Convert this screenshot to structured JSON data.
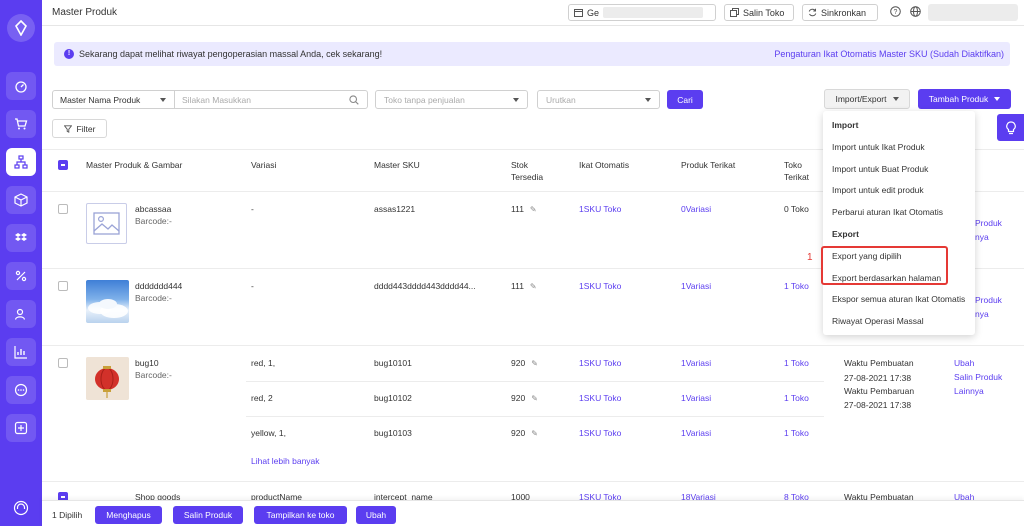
{
  "header": {
    "title": "Master Produk",
    "search_prefix": "Ge",
    "copy_store_label": "Salin Toko",
    "sync_label": "Sinkronkan"
  },
  "notice": {
    "text": "Sekarang dapat melihat riwayat pengoperasian massal Anda, cek sekarang!",
    "link": "Pengaturan Ikat Otomatis Master SKU (Sudah Diaktifkan)"
  },
  "filters": {
    "search_type": "Master Nama Produk",
    "search_placeholder": "Silakan Masukkan",
    "store_placeholder": "Toko tanpa penjualan",
    "sort_placeholder": "Urutkan",
    "search_button": "Cari",
    "import_export_label": "Import/Export",
    "add_product_label": "Tambah Produk",
    "filter_label": "Filter"
  },
  "table": {
    "headers": {
      "product": "Master Produk & Gambar",
      "variation": "Variasi",
      "sku": "Master SKU",
      "stock_1": "Stok",
      "stock_2": "Tersedia",
      "auto_bind": "Ikat Otomatis",
      "bound_product": "Produk Terikat",
      "bound_store_1": "Toko",
      "bound_store_2": "Terikat"
    },
    "rows": [
      {
        "name": "abcassaa",
        "barcode": "Barcode:-",
        "variation": "-",
        "sku": "assas1221",
        "stock": "111",
        "auto_bind": "1SKU Toko",
        "bound_product": "0Variasi",
        "bound_store": "0 Toko",
        "action_tail_1": "Produk",
        "action_tail_2": "nya"
      },
      {
        "name": "ddddddd444",
        "barcode": "Barcode:-",
        "variation": "-",
        "sku": "dddd443dddd443dddd44...",
        "stock": "111",
        "auto_bind": "1SKU Toko",
        "bound_product": "1Variasi",
        "bound_store": "1 Toko",
        "action_tail_1": "Produk",
        "action_tail_2": "nya"
      },
      {
        "name": "bug10",
        "barcode": "Barcode:-",
        "subrows": [
          {
            "variation": "red, 1,",
            "sku": "bug10101",
            "stock": "920",
            "auto_bind": "1SKU Toko",
            "bound_product": "1Variasi",
            "bound_store": "1 Toko"
          },
          {
            "variation": "red, 2",
            "sku": "bug10102",
            "stock": "920",
            "auto_bind": "1SKU Toko",
            "bound_product": "1Variasi",
            "bound_store": "1 Toko"
          },
          {
            "variation": "yellow, 1,",
            "sku": "bug10103",
            "stock": "920",
            "auto_bind": "1SKU Toko",
            "bound_product": "1Variasi",
            "bound_store": "1 Toko"
          }
        ],
        "more_link": "Lihat lebih banyak",
        "created_label": "Waktu Pembuatan",
        "created_time": "27-08-2021 17:38",
        "updated_label": "Waktu Pembaruan",
        "updated_time": "27-08-2021 17:38",
        "actions": [
          "Ubah",
          "Salin Produk",
          "Lainnya"
        ]
      },
      {
        "name": "Shop goods",
        "variation": "productName",
        "sku": "intercept_name",
        "stock": "1000",
        "auto_bind": "1SKU Toko",
        "bound_product": "18Variasi",
        "bound_store": "8 Toko",
        "created_label": "Waktu Pembuatan",
        "action": "Ubah"
      }
    ]
  },
  "dropdown": {
    "import_header": "Import",
    "items_import": [
      "Import untuk Ikat Produk",
      "Import untuk Buat Produk",
      "Import untuk edit produk",
      "Perbarui aturan Ikat Otomatis"
    ],
    "export_header": "Export",
    "items_export": [
      "Export yang dipilih",
      "Export berdasarkan halaman",
      "Ekspor semua aturan Ikat Otomatis",
      "Riwayat Operasi Massal"
    ],
    "annotation_number": "1"
  },
  "bottom": {
    "selected": "1 Dipilih",
    "buttons": [
      "Menghapus",
      "Salin Produk",
      "Tampilkan ke toko",
      "Ubah"
    ]
  },
  "colors": {
    "accent": "#5b3df0",
    "highlight": "#e53935"
  }
}
